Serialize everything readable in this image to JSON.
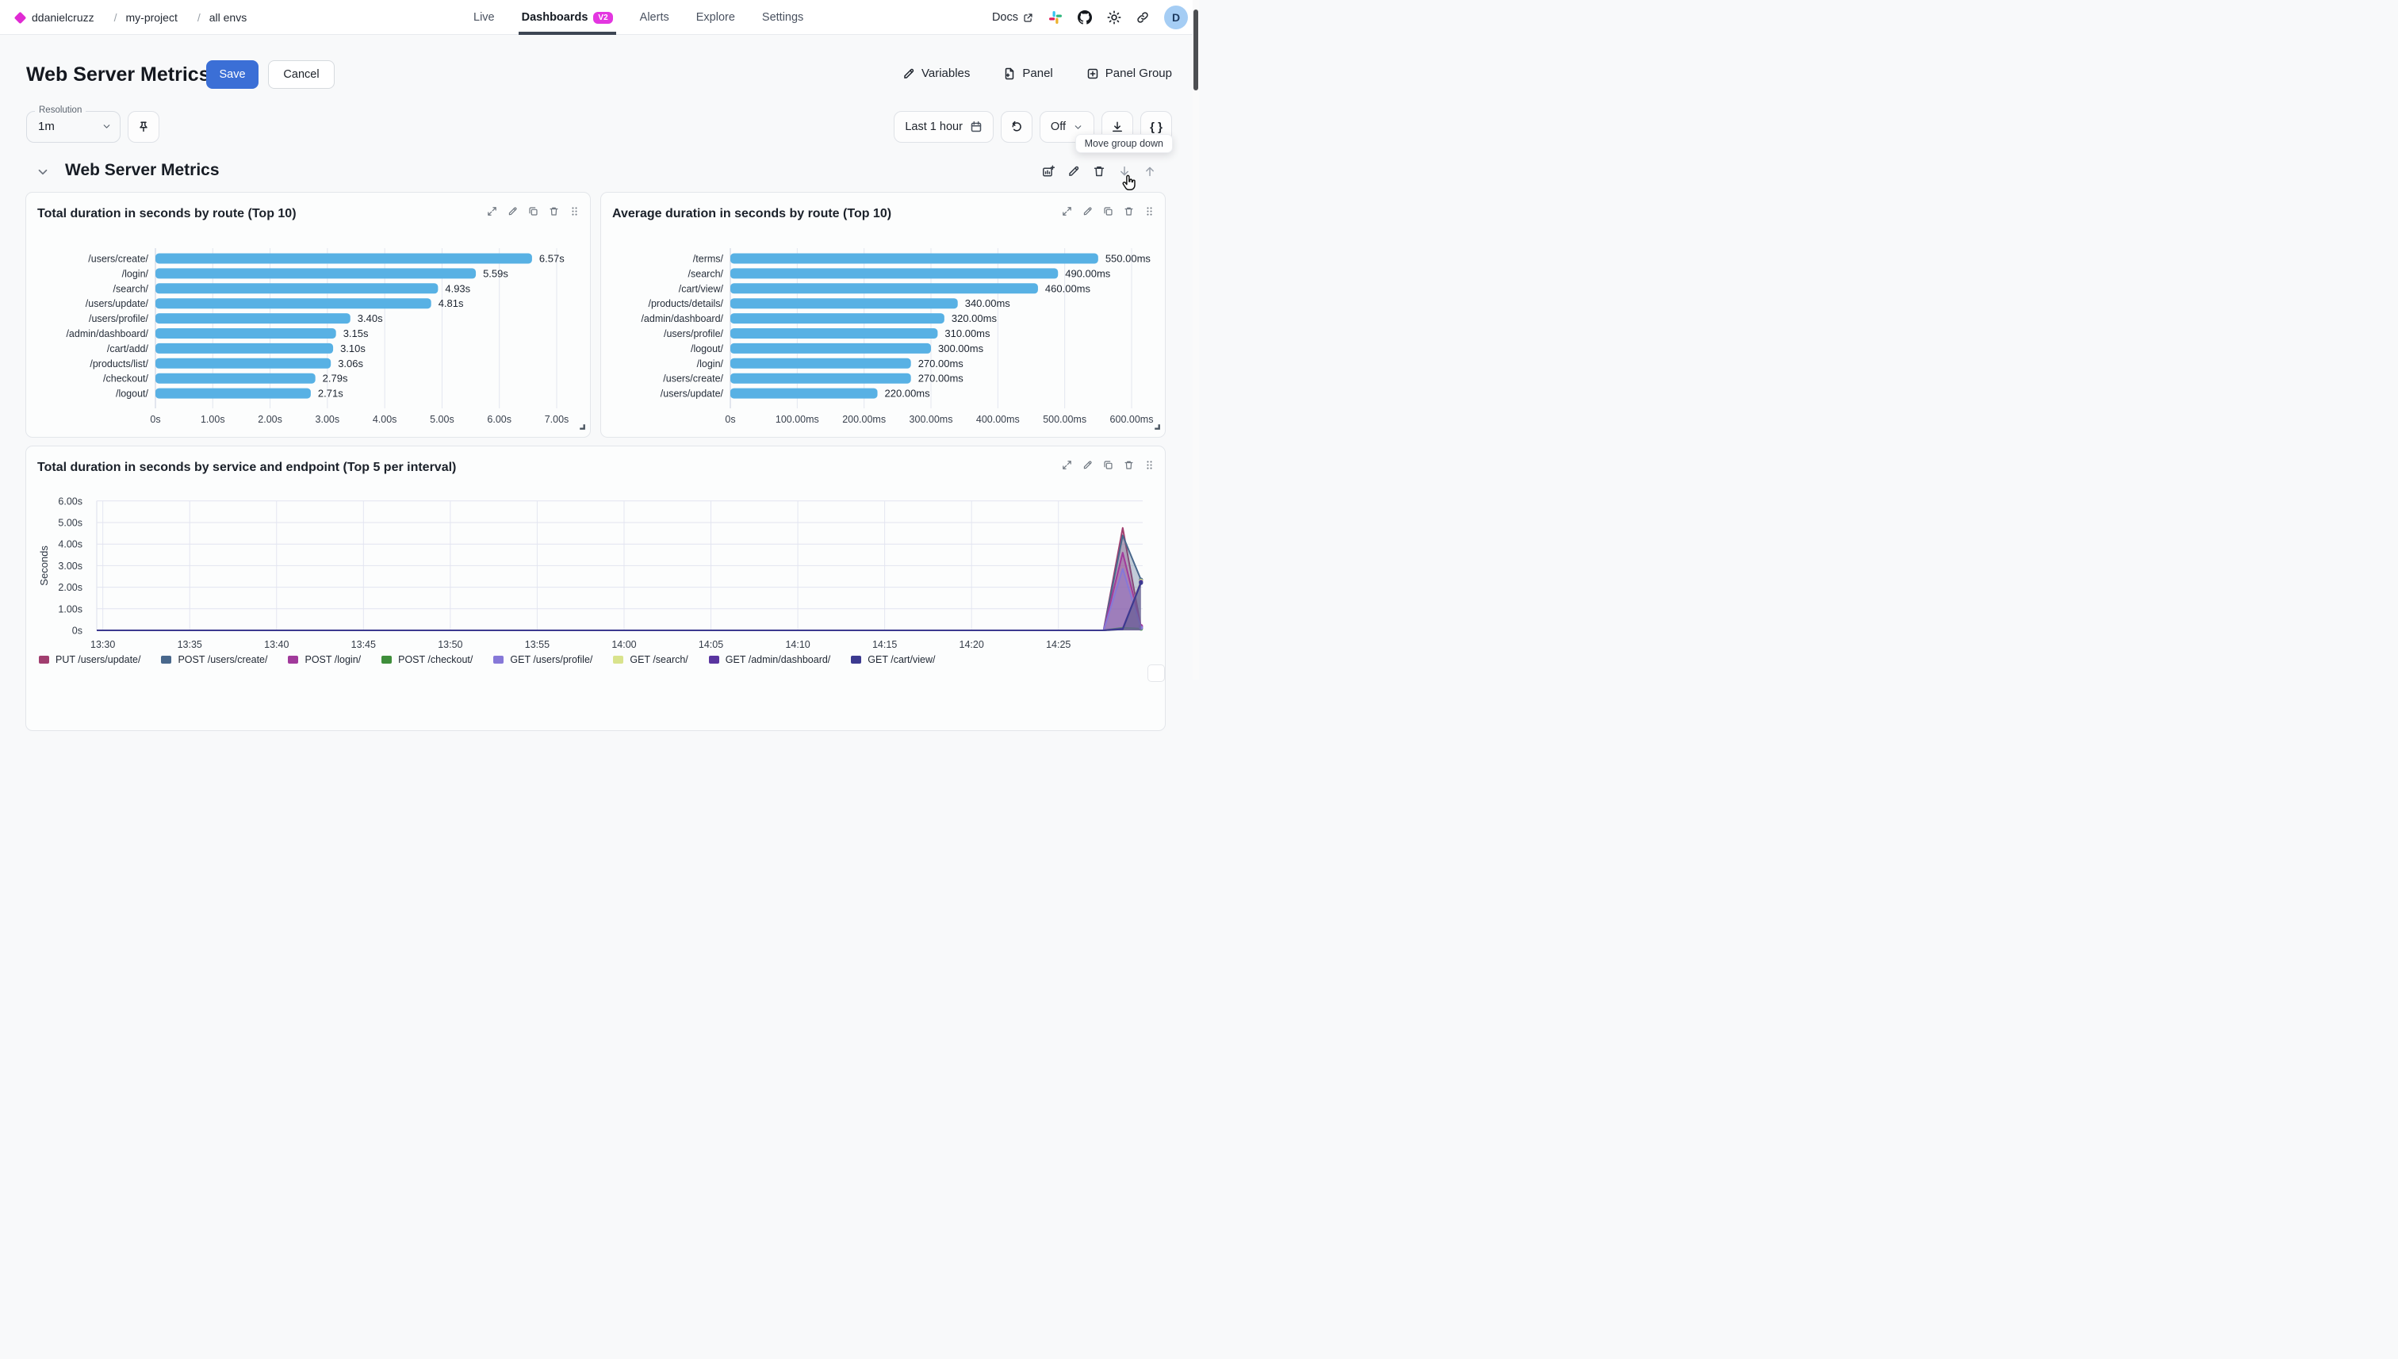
{
  "nav": {
    "breadcrumb": [
      {
        "label": "ddanielcruzz"
      },
      {
        "label": "my-project"
      },
      {
        "label": "all envs"
      }
    ],
    "tabs": [
      {
        "label": "Live",
        "active": false
      },
      {
        "label": "Dashboards",
        "active": true,
        "badge": "V2"
      },
      {
        "label": "Alerts",
        "active": false
      },
      {
        "label": "Explore",
        "active": false
      },
      {
        "label": "Settings",
        "active": false
      }
    ],
    "docs_label": "Docs",
    "avatar_letter": "D",
    "right_icons": [
      "external-link-icon",
      "slack-icon",
      "github-icon",
      "theme-sun-icon",
      "link-icon"
    ]
  },
  "header": {
    "title": "Web Server Metrics",
    "save_label": "Save",
    "cancel_label": "Cancel",
    "actions": [
      {
        "label": "Variables",
        "icon": "pencil-icon"
      },
      {
        "label": "Panel",
        "icon": "file-plus-icon"
      },
      {
        "label": "Panel Group",
        "icon": "square-plus-icon"
      }
    ]
  },
  "toolbar": {
    "resolution_label": "Resolution",
    "resolution_value": "1m",
    "time_range": "Last 1 hour",
    "auto_refresh": "Off",
    "braces_label": "{ }",
    "tooltip": "Move group down",
    "icons": [
      "pin-icon",
      "calendar-icon",
      "refresh-icon",
      "chevron-down-icon",
      "download-icon"
    ]
  },
  "group": {
    "title": "Web Server Metrics",
    "action_icons": [
      "chart-add-icon",
      "pencil-icon",
      "trash-icon",
      "arrow-down-icon",
      "arrow-up-icon"
    ]
  },
  "colors": {
    "accent_blue": "#3b6fd6",
    "bar_blue": "#58b1e4",
    "badge_magenta": "#e336e0",
    "brand_diamond": "#e02bd3",
    "avatar_bg": "#a5cdf4",
    "tab_underline": "#3d4653"
  },
  "chart_data": [
    {
      "type": "bar",
      "orientation": "horizontal",
      "title": "Total duration in seconds by route (Top 10)",
      "unit": "s",
      "categories": [
        "/users/create/",
        "/login/",
        "/search/",
        "/users/update/",
        "/users/profile/",
        "/admin/dashboard/",
        "/cart/add/",
        "/products/list/",
        "/checkout/",
        "/logout/"
      ],
      "values": [
        6.57,
        5.59,
        4.93,
        4.81,
        3.4,
        3.15,
        3.1,
        3.06,
        2.79,
        2.71
      ],
      "value_labels": [
        "6.57s",
        "5.59s",
        "4.93s",
        "4.81s",
        "3.40s",
        "3.15s",
        "3.10s",
        "3.06s",
        "2.79s",
        "2.71s"
      ],
      "x_ticks": [
        {
          "v": 0,
          "label": "0s"
        },
        {
          "v": 1,
          "label": "1.00s"
        },
        {
          "v": 2,
          "label": "2.00s"
        },
        {
          "v": 3,
          "label": "3.00s"
        },
        {
          "v": 4,
          "label": "4.00s"
        },
        {
          "v": 5,
          "label": "5.00s"
        },
        {
          "v": 6,
          "label": "6.00s"
        },
        {
          "v": 7,
          "label": "7.00s"
        }
      ],
      "bar_color": "#58b1e4",
      "grid": true
    },
    {
      "type": "bar",
      "orientation": "horizontal",
      "title": "Average duration in seconds by route (Top 10)",
      "unit": "ms",
      "categories": [
        "/terms/",
        "/search/",
        "/cart/view/",
        "/products/details/",
        "/admin/dashboard/",
        "/users/profile/",
        "/logout/",
        "/login/",
        "/users/create/",
        "/users/update/"
      ],
      "values": [
        550,
        490,
        460,
        340,
        320,
        310,
        300,
        270,
        270,
        220
      ],
      "value_labels": [
        "550.00ms",
        "490.00ms",
        "460.00ms",
        "340.00ms",
        "320.00ms",
        "310.00ms",
        "300.00ms",
        "270.00ms",
        "270.00ms",
        "220.00ms"
      ],
      "x_ticks": [
        {
          "v": 0,
          "label": "0s"
        },
        {
          "v": 100,
          "label": "100.00ms"
        },
        {
          "v": 200,
          "label": "200.00ms"
        },
        {
          "v": 300,
          "label": "300.00ms"
        },
        {
          "v": 400,
          "label": "400.00ms"
        },
        {
          "v": 500,
          "label": "500.00ms"
        },
        {
          "v": 600,
          "label": "600.00ms"
        }
      ],
      "bar_color": "#58b1e4",
      "grid": true
    },
    {
      "type": "area",
      "title": "Total duration in seconds by service and endpoint (Top 5 per interval)",
      "ylabel": "Seconds",
      "ylim": [
        0,
        6
      ],
      "xlim_minutes": [
        -0.35,
        59.85
      ],
      "y_ticks": [
        {
          "v": 0,
          "label": "0s"
        },
        {
          "v": 1,
          "label": "1.00s"
        },
        {
          "v": 2,
          "label": "2.00s"
        },
        {
          "v": 3,
          "label": "3.00s"
        },
        {
          "v": 4,
          "label": "4.00s"
        },
        {
          "v": 5,
          "label": "5.00s"
        },
        {
          "v": 6,
          "label": "6.00s"
        }
      ],
      "x_ticks": [
        {
          "t": 0,
          "label": "13:30"
        },
        {
          "t": 5,
          "label": "13:35"
        },
        {
          "t": 10,
          "label": "13:40"
        },
        {
          "t": 15,
          "label": "13:45"
        },
        {
          "t": 20,
          "label": "13:50"
        },
        {
          "t": 25,
          "label": "13:55"
        },
        {
          "t": 30,
          "label": "14:00"
        },
        {
          "t": 35,
          "label": "14:05"
        },
        {
          "t": 40,
          "label": "14:10"
        },
        {
          "t": 45,
          "label": "14:15"
        },
        {
          "t": 50,
          "label": "14:20"
        },
        {
          "t": 55,
          "label": "14:25"
        }
      ],
      "grid": true,
      "legend_position": "bottom",
      "series": [
        {
          "name": "PUT /users/update/",
          "color": "#a13e6f",
          "points": [
            [
              -0.35,
              0
            ],
            [
              57.6,
              0
            ],
            [
              58.7,
              4.75
            ],
            [
              59.75,
              0.15
            ]
          ]
        },
        {
          "name": "POST /users/create/",
          "color": "#49688c",
          "points": [
            [
              -0.35,
              0
            ],
            [
              57.6,
              0
            ],
            [
              58.7,
              4.4
            ],
            [
              59.75,
              2.35
            ]
          ]
        },
        {
          "name": "POST /login/",
          "color": "#a13a9b",
          "points": [
            [
              -0.35,
              0
            ],
            [
              57.6,
              0
            ],
            [
              58.7,
              3.6
            ],
            [
              59.75,
              0.2
            ]
          ]
        },
        {
          "name": "POST /checkout/",
          "color": "#3f8e3b",
          "points": [
            [
              -0.35,
              0
            ],
            [
              57.6,
              0
            ],
            [
              58.7,
              0.12
            ],
            [
              59.75,
              0.08
            ]
          ]
        },
        {
          "name": "GET /users/profile/",
          "color": "#8678d8",
          "points": [
            [
              -0.35,
              0
            ],
            [
              57.6,
              0
            ],
            [
              58.7,
              2.85
            ],
            [
              59.75,
              0.12
            ]
          ]
        },
        {
          "name": "GET /search/",
          "color": "#d9e38c",
          "points": [
            [
              -0.35,
              0
            ],
            [
              57.6,
              0
            ],
            [
              58.7,
              0.05
            ],
            [
              59.75,
              2.3
            ]
          ]
        },
        {
          "name": "GET /admin/dashboard/",
          "color": "#5a35a0",
          "points": [
            [
              -0.35,
              0
            ],
            [
              57.6,
              0
            ],
            [
              58.7,
              0.08
            ],
            [
              59.75,
              2.25
            ]
          ]
        },
        {
          "name": "GET /cart/view/",
          "color": "#3c3a90",
          "points": [
            [
              -0.35,
              0
            ],
            [
              57.6,
              0
            ],
            [
              58.7,
              0.05
            ],
            [
              59.75,
              2.2
            ]
          ]
        }
      ]
    }
  ]
}
